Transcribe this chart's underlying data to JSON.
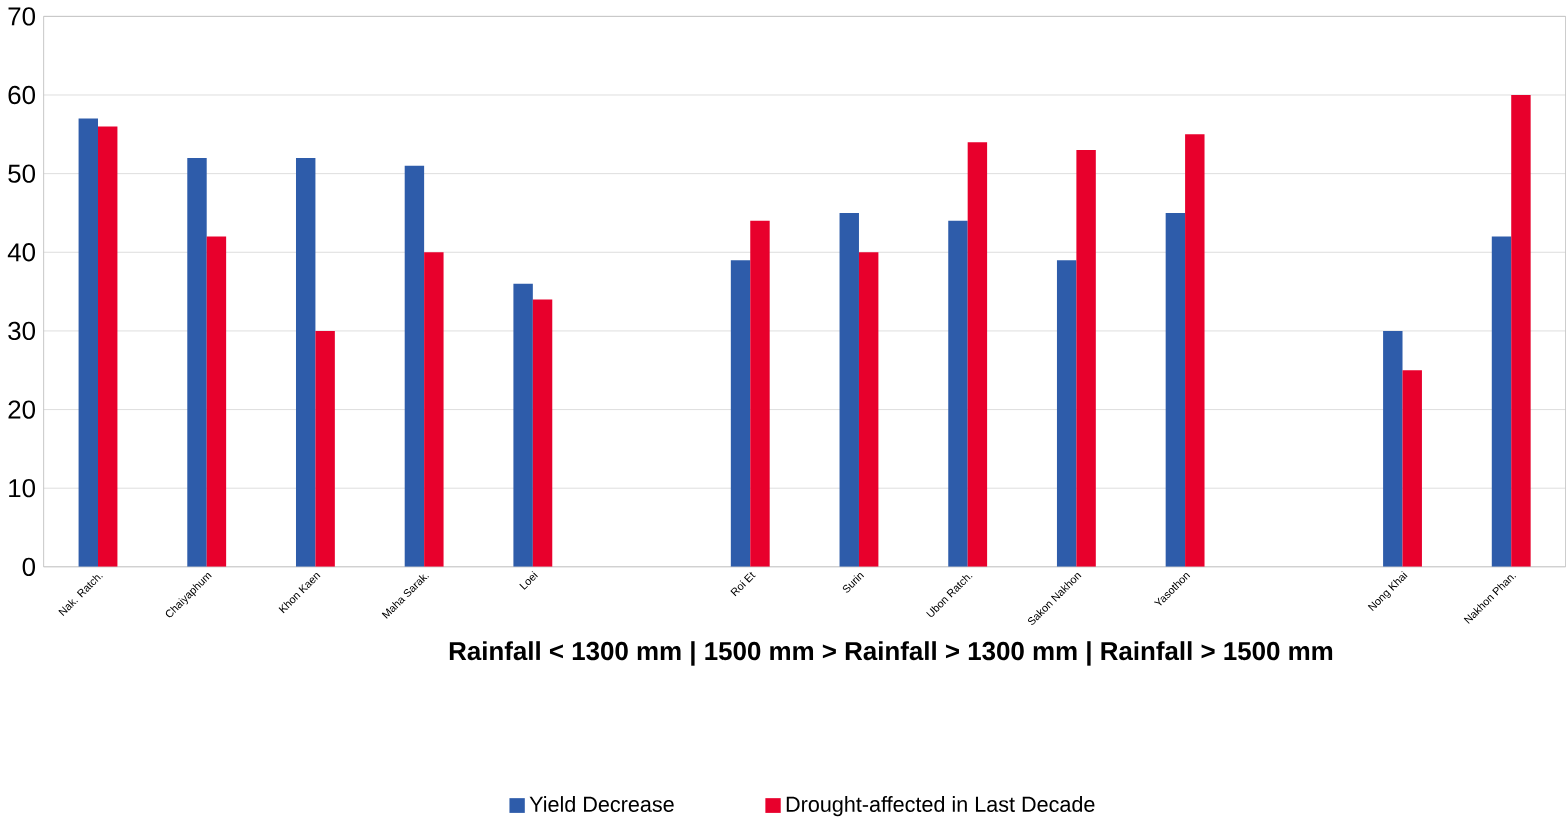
{
  "chart_data": {
    "type": "bar",
    "categories": [
      "Nak. Ratch.",
      "Chaiyaphum",
      "Khon Kaen",
      "Maha Sarak.",
      "Loei",
      null,
      "Roi Et",
      "Surin",
      "Ubon Ratch.",
      "Sakon Nakhon",
      "Yasothon",
      null,
      "Nong Khai",
      "Nakhon Phan."
    ],
    "series": [
      {
        "name": "Yield Decrease",
        "color": "#2e5caa",
        "values": [
          57,
          52,
          52,
          51,
          36,
          null,
          39,
          45,
          44,
          39,
          45,
          null,
          30,
          42
        ]
      },
      {
        "name": "Drought-affected in Last Decade",
        "color": "#e8002c",
        "values": [
          56,
          42,
          30,
          40,
          34,
          null,
          44,
          40,
          54,
          53,
          55,
          null,
          25,
          60
        ]
      }
    ],
    "xlabel": "Rainfall < 1300 mm    |  1500 mm > Rainfall > 1300 mm | Rainfall > 1500 mm",
    "ylim": [
      0,
      70
    ],
    "yticks": [
      0,
      10,
      20,
      30,
      40,
      50,
      60,
      70
    ],
    "grid": "y",
    "legend": "bottom"
  }
}
